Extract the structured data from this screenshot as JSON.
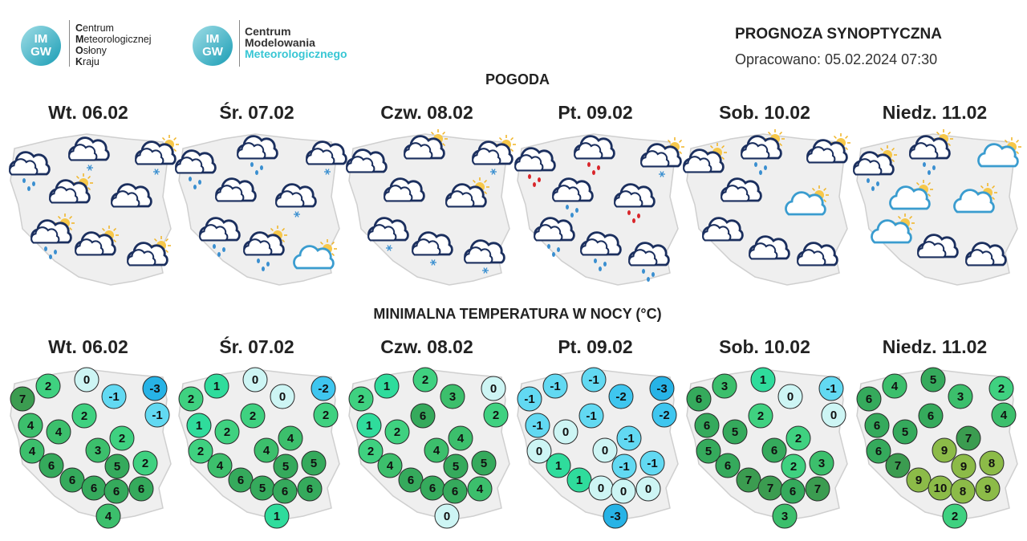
{
  "header": {
    "logo1": {
      "badge_top": "IM",
      "badge_bottom": "GW",
      "lines": [
        "Centrum",
        "Meteorologicznej",
        "Osłony",
        "Kraju"
      ]
    },
    "logo2": {
      "badge_top": "IM",
      "badge_bottom": "GW",
      "lines": [
        "Centrum",
        "Modelowania",
        "Meteorologicznego"
      ]
    },
    "title": "PROGNOZA SYNOPTYCZNA",
    "issued": "Opracowano: 05.02.2024 07:30"
  },
  "weather": {
    "title": "POGODA",
    "days": [
      "Wt. 06.02",
      "Śr. 07.02",
      "Czw. 08.02",
      "Pt. 09.02",
      "Sob. 10.02",
      "Niedz. 11.02"
    ]
  },
  "temperature": {
    "title": "MINIMALNA TEMPERATURA W NOCY (°C)",
    "days": [
      "Wt. 06.02",
      "Śr. 07.02",
      "Czw. 08.02",
      "Pt. 09.02",
      "Sob. 10.02",
      "Niedz. 11.02"
    ],
    "maps": [
      [
        7,
        2,
        0,
        -1,
        -3,
        -1,
        4,
        4,
        2,
        2,
        4,
        3,
        6,
        5,
        2,
        6,
        6,
        6,
        6,
        4
      ],
      [
        2,
        1,
        0,
        0,
        -2,
        2,
        1,
        2,
        2,
        4,
        2,
        4,
        4,
        5,
        5,
        6,
        5,
        6,
        6,
        1
      ],
      [
        2,
        1,
        2,
        3,
        0,
        2,
        1,
        2,
        6,
        4,
        2,
        4,
        4,
        5,
        5,
        6,
        6,
        6,
        4,
        0
      ],
      [
        -1,
        -1,
        -1,
        -2,
        -3,
        -2,
        -1,
        0,
        -1,
        -1,
        0,
        0,
        1,
        -1,
        -1,
        1,
        0,
        0,
        0,
        -3
      ],
      [
        6,
        3,
        1,
        0,
        -1,
        0,
        6,
        5,
        2,
        2,
        5,
        6,
        6,
        2,
        3,
        7,
        7,
        6,
        7,
        3
      ],
      [
        6,
        4,
        5,
        3,
        2,
        4,
        6,
        5,
        6,
        7,
        6,
        9,
        7,
        9,
        8,
        9,
        10,
        8,
        9,
        2
      ]
    ]
  }
}
